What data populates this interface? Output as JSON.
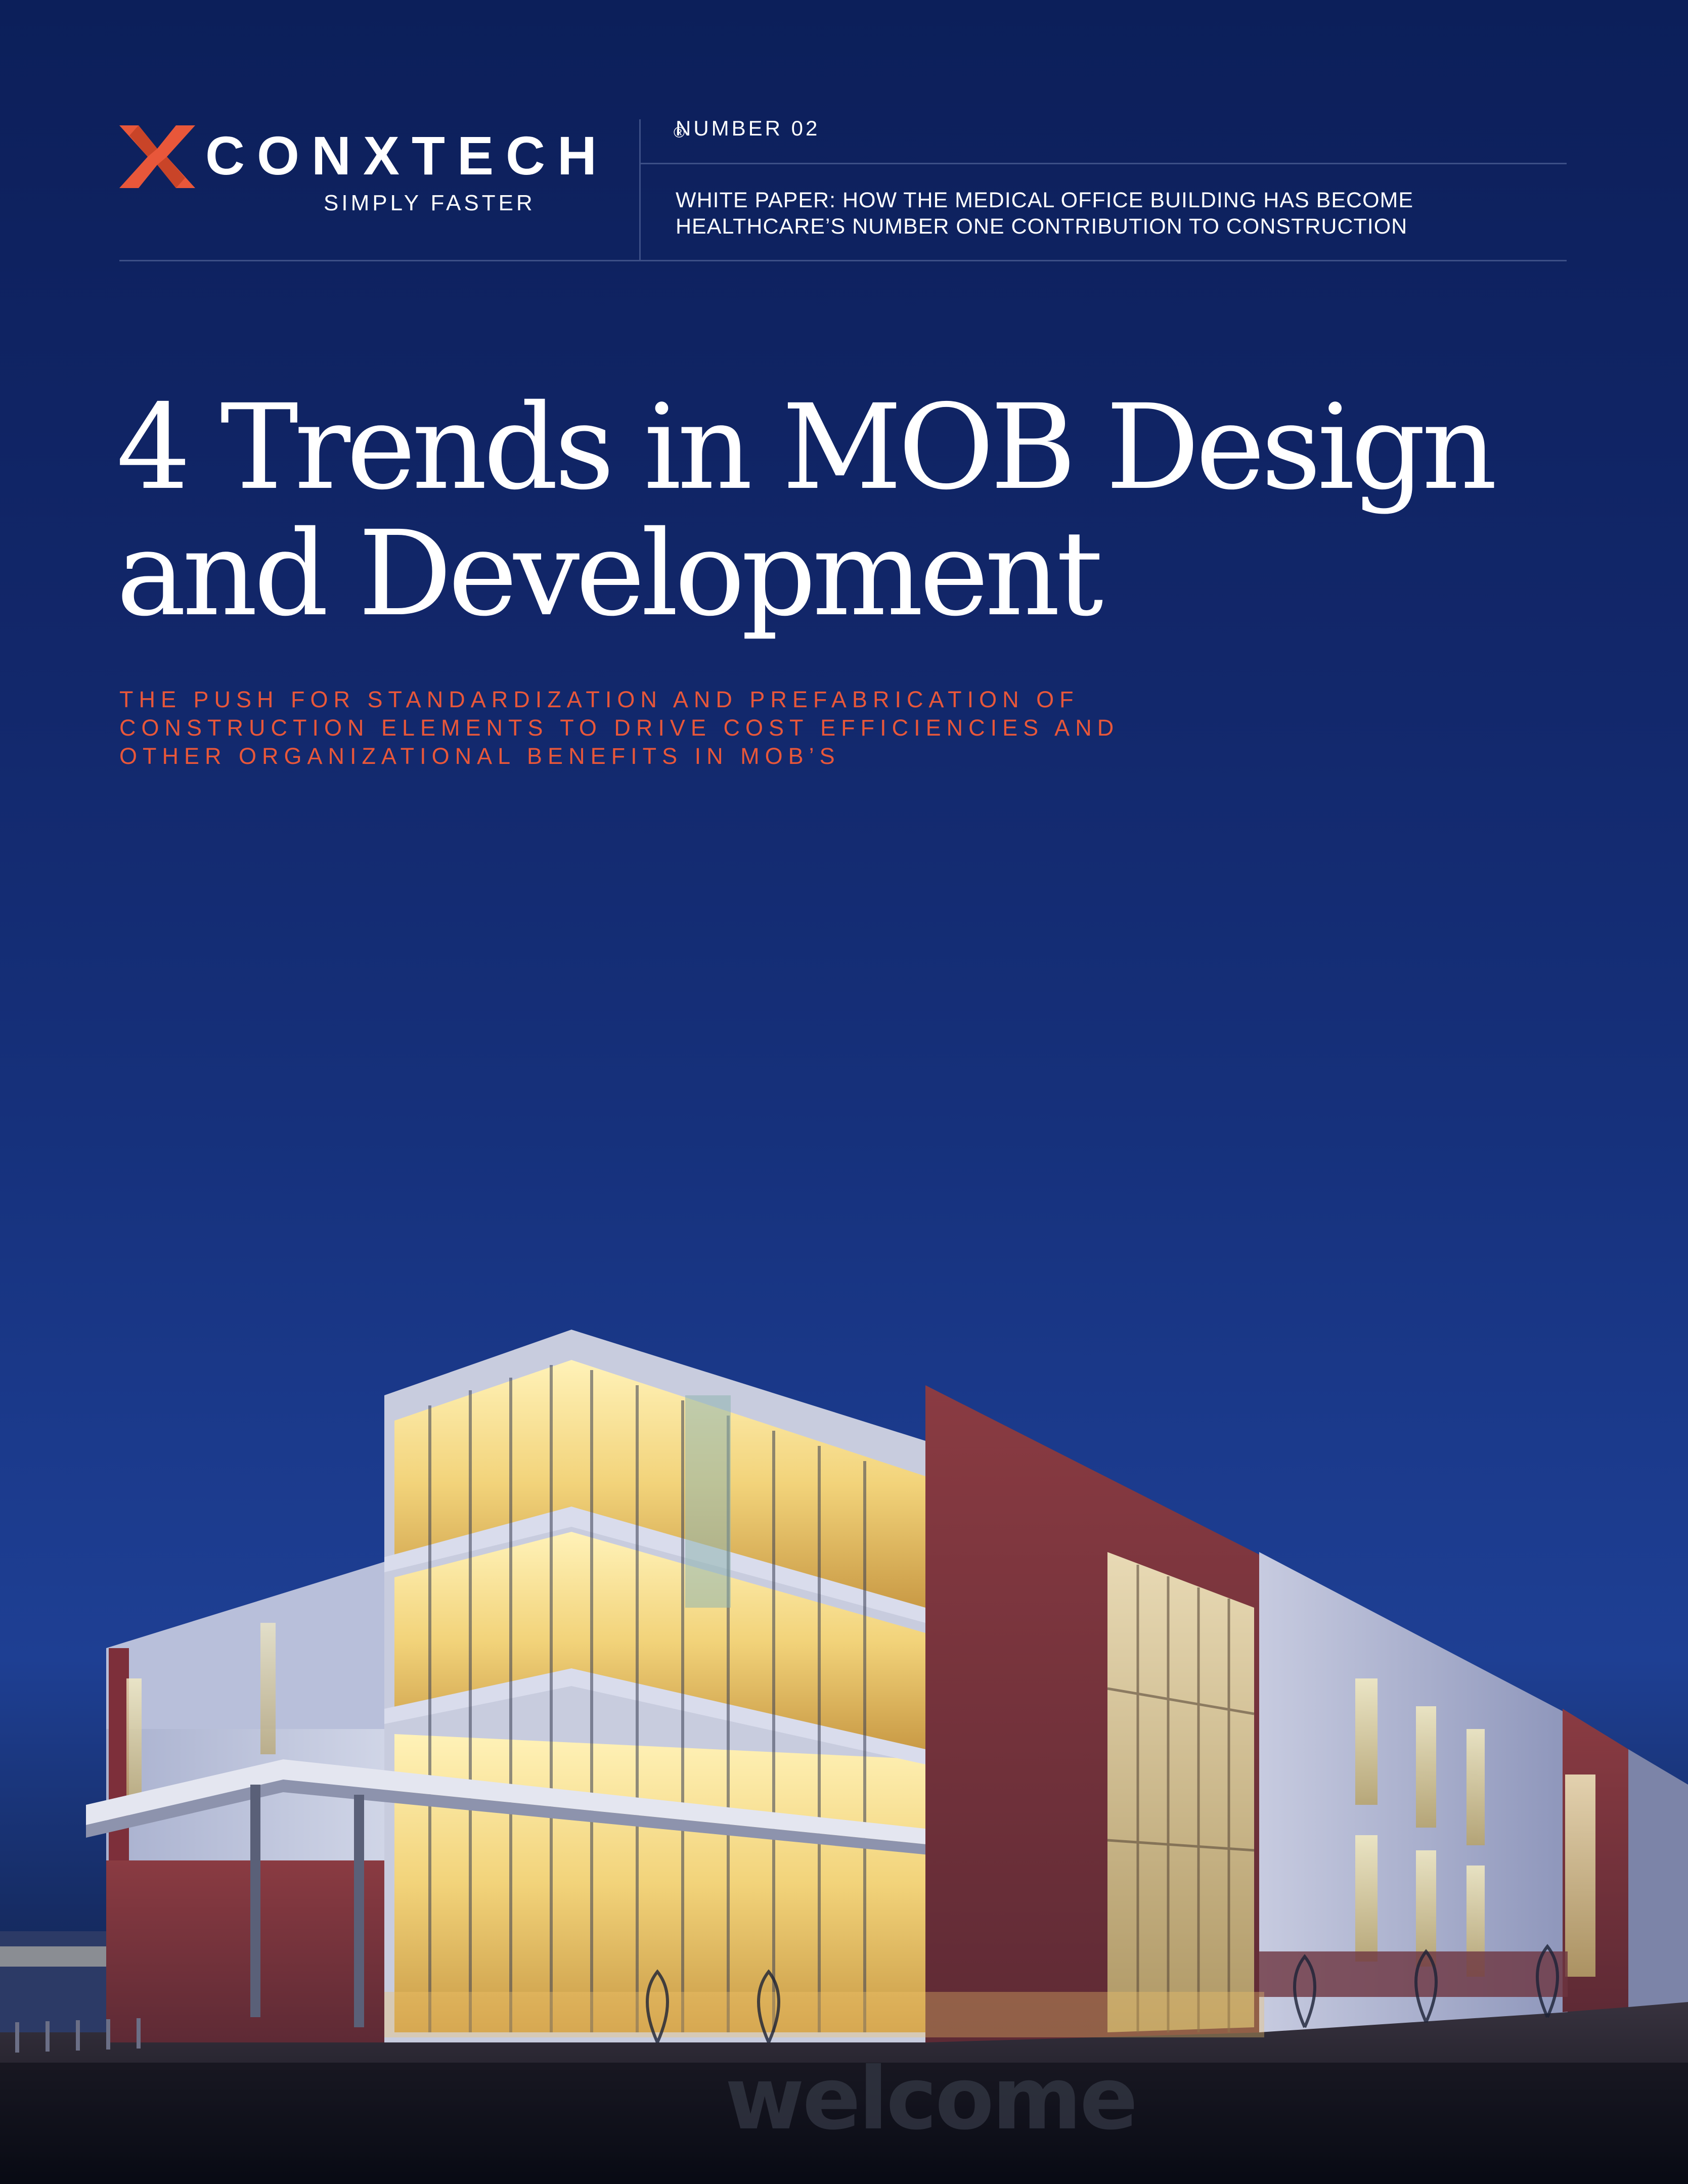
{
  "brand": {
    "name": "CONXTECH",
    "registered": "®",
    "tagline": "SIMPLY FASTER",
    "accent_color": "#e8573a",
    "logo_icon": "x-mark-logo-icon"
  },
  "header": {
    "issue": "NUMBER 02",
    "paper_label_lines": [
      "WHITE PAPER: HOW THE MEDICAL OFFICE BUILDING HAS BECOME",
      "HEALTHCARE’S NUMBER ONE CONTRIBUTION TO CONSTRUCTION"
    ]
  },
  "title_lines": [
    "4 Trends in MOB Design",
    "and Development"
  ],
  "subtitle_lines": [
    "THE PUSH FOR STANDARDIZATION AND PREFABRICATION OF",
    "CONSTRUCTION ELEMENTS TO DRIVE COST EFFICIENCIES AND",
    "OTHER ORGANIZATIONAL BENEFITS IN MOB’S"
  ],
  "photo": {
    "sign_text": "welcome"
  }
}
